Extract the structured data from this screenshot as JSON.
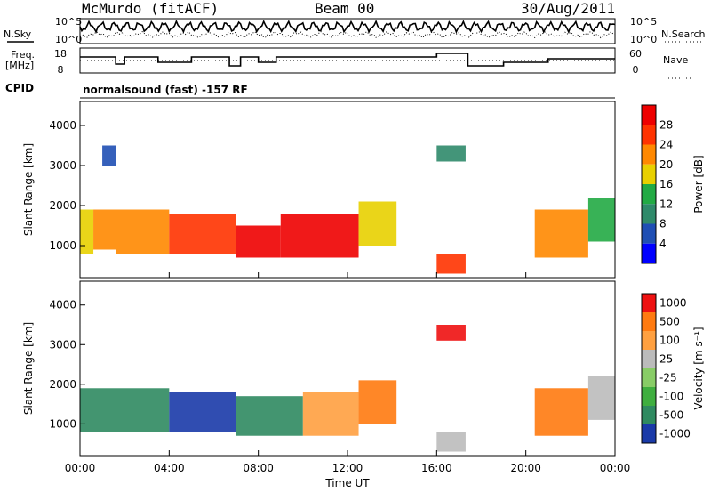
{
  "header": {
    "station": "McMurdo (fitACF)",
    "beam": "Beam 00",
    "date": "30/Aug/2011"
  },
  "noise_panel": {
    "left_label": "N.Sky",
    "right_label": "N.Search",
    "left_ticks": [
      "10^5",
      "10^0"
    ],
    "right_ticks": [
      "10^5",
      "10^0"
    ]
  },
  "freq_panel": {
    "left_label_line1": "Freq.",
    "left_label_line2": "[MHz]",
    "right_label": "Nave",
    "left_ticks": [
      "18",
      "8"
    ],
    "right_ticks": [
      "60",
      "0"
    ]
  },
  "cpid_panel": {
    "label": "CPID",
    "program": "normalsound (fast) -157 RF"
  },
  "chart_data": [
    {
      "type": "heatmap",
      "name": "power",
      "ylabel": "Slant Range [km]",
      "y_ticks": [
        "1000",
        "2000",
        "3000",
        "4000"
      ],
      "ylim": [
        200,
        4600
      ],
      "colorbar_label": "Power [dB]",
      "colorbar_ticks": [
        "4",
        "8",
        "12",
        "16",
        "20",
        "24",
        "28"
      ],
      "colors": [
        "#0000ff",
        "#1f4fb4",
        "#2f8a6a",
        "#22aa44",
        "#e8d000",
        "#ff8800",
        "#ff3300",
        "#ee0000"
      ],
      "regions": [
        {
          "t0": 0.0,
          "t1": 0.6,
          "r0": 800,
          "r1": 1900,
          "level": 4
        },
        {
          "t0": 0.6,
          "t1": 1.6,
          "r0": 900,
          "r1": 1900,
          "level": 5
        },
        {
          "t0": 1.6,
          "t1": 4.0,
          "r0": 800,
          "r1": 1900,
          "level": 5
        },
        {
          "t0": 4.0,
          "t1": 7.0,
          "r0": 800,
          "r1": 1800,
          "level": 6
        },
        {
          "t0": 7.0,
          "t1": 9.0,
          "r0": 700,
          "r1": 1500,
          "level": 7
        },
        {
          "t0": 9.0,
          "t1": 12.5,
          "r0": 700,
          "r1": 1800,
          "level": 7
        },
        {
          "t0": 12.5,
          "t1": 14.2,
          "r0": 1000,
          "r1": 2100,
          "level": 4
        },
        {
          "t0": 20.4,
          "t1": 22.8,
          "r0": 700,
          "r1": 1900,
          "level": 5
        },
        {
          "t0": 22.8,
          "t1": 24.0,
          "r0": 1100,
          "r1": 2200,
          "level": 3
        },
        {
          "t0": 1.0,
          "t1": 1.6,
          "r0": 3000,
          "r1": 3500,
          "level": 1
        },
        {
          "t0": 16.0,
          "t1": 17.3,
          "r0": 3100,
          "r1": 3500,
          "level": 2
        },
        {
          "t0": 16.0,
          "t1": 17.3,
          "r0": 300,
          "r1": 800,
          "level": 6
        }
      ]
    },
    {
      "type": "heatmap",
      "name": "velocity",
      "ylabel": "Slant Range [km]",
      "y_ticks": [
        "1000",
        "2000",
        "3000",
        "4000"
      ],
      "ylim": [
        200,
        4600
      ],
      "colorbar_label": "Velocity [m s⁻¹]",
      "colorbar_ticks": [
        "1000",
        "500",
        "100",
        "25",
        "-25",
        "-100",
        "-500",
        "-1000"
      ],
      "colors": [
        "#1a3aa8",
        "#2f8a60",
        "#3fae3f",
        "#88cc66",
        "#bbbbbb",
        "#ffa040",
        "#ff7a10",
        "#ee1111"
      ],
      "regions": [
        {
          "t0": 0.0,
          "t1": 1.6,
          "r0": 800,
          "r1": 1900,
          "level": 1
        },
        {
          "t0": 1.6,
          "t1": 4.0,
          "r0": 800,
          "r1": 1900,
          "level": 1
        },
        {
          "t0": 4.0,
          "t1": 7.0,
          "r0": 800,
          "r1": 1800,
          "level": 0
        },
        {
          "t0": 7.0,
          "t1": 10.0,
          "r0": 700,
          "r1": 1700,
          "level": 1
        },
        {
          "t0": 10.0,
          "t1": 12.5,
          "r0": 700,
          "r1": 1800,
          "level": 5
        },
        {
          "t0": 12.5,
          "t1": 14.2,
          "r0": 1000,
          "r1": 2100,
          "level": 6
        },
        {
          "t0": 20.4,
          "t1": 22.8,
          "r0": 700,
          "r1": 1900,
          "level": 6
        },
        {
          "t0": 22.8,
          "t1": 24.0,
          "r0": 1100,
          "r1": 2200,
          "level": 4
        },
        {
          "t0": 16.0,
          "t1": 17.3,
          "r0": 3100,
          "r1": 3500,
          "level": 7
        },
        {
          "t0": 16.0,
          "t1": 17.3,
          "r0": 300,
          "r1": 800,
          "level": 4
        }
      ]
    }
  ],
  "x_axis": {
    "label": "Time UT",
    "ticks": [
      "00:00",
      "04:00",
      "08:00",
      "12:00",
      "16:00",
      "20:00",
      "00:00"
    ]
  }
}
